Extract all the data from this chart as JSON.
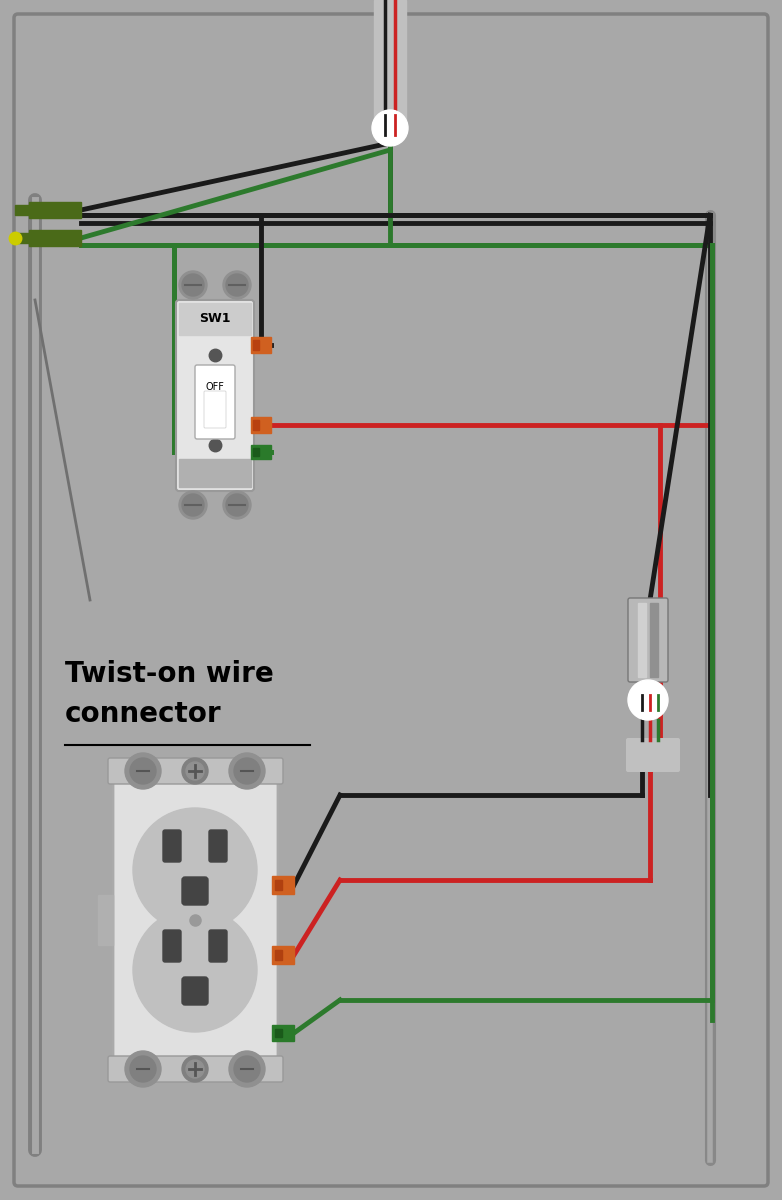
{
  "bg": "#a8a8a8",
  "wire_black": "#1a1a1a",
  "wire_red": "#cc2222",
  "wire_green": "#2d7a2d",
  "wire_gray": "#909090",
  "ww": 3.5,
  "ww_thin": 2.0,
  "fig_w": 7.82,
  "fig_h": 12.0,
  "dpi": 100,
  "title_line1": "Twist-on wire",
  "title_line2": "connector",
  "sw_label": "SW1",
  "off_label": "OFF"
}
